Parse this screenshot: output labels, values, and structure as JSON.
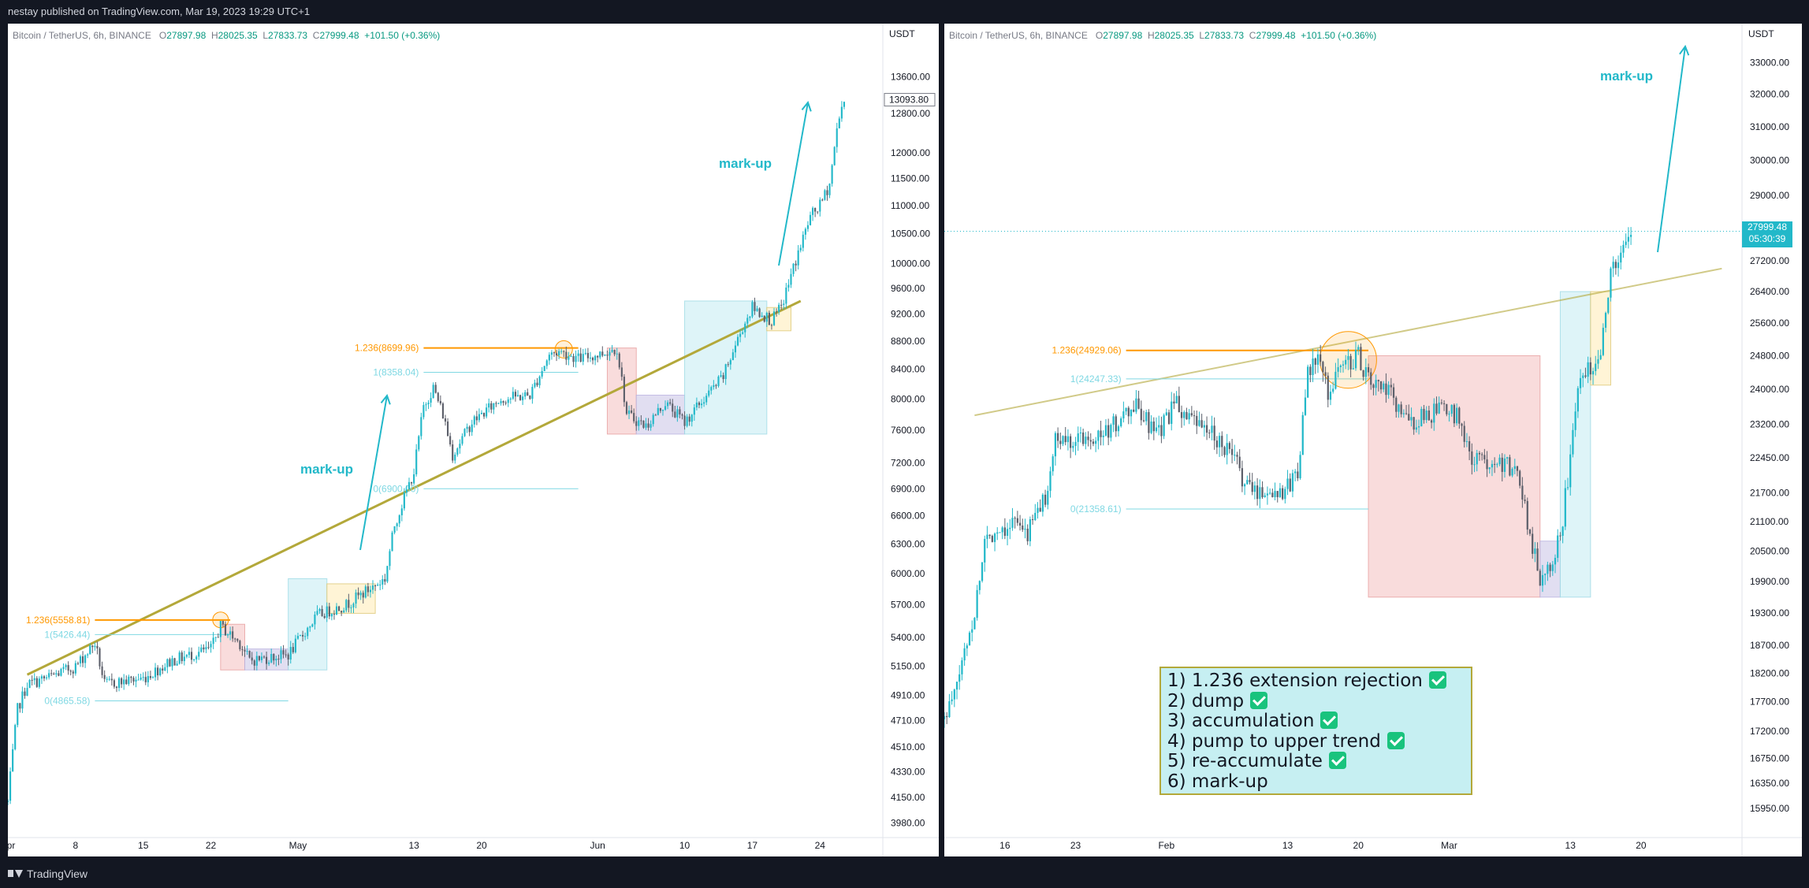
{
  "header": {
    "publisher_text": "nestay published on TradingView.com, Mar 19, 2023 19:29 UTC+1"
  },
  "footer": {
    "brand": "TradingView"
  },
  "colors": {
    "accent": "#22b8c9",
    "fib_orange": "#ff9800",
    "trend_gold": "#b3a83a",
    "up_candle": "#22b8c9",
    "down_candle": "#5d606b",
    "dump_box": "#f8d6d6",
    "accum_box": "#dcd9ef",
    "pump_box": "#d9f3f7"
  },
  "left_chart": {
    "symbol": "Bitcoin / TetherUS, 6h, BINANCE",
    "o_label": "O",
    "o_value": "27897.98",
    "h_label": "H",
    "h_value": "28025.35",
    "l_label": "L",
    "l_value": "27833.73",
    "c_label": "C",
    "c_value": "27999.48",
    "change": "+101.50 (+0.36%)",
    "currency": "USDT",
    "current_price_tag": "13093.80",
    "markup_labels": [
      "mark-up",
      "mark-up"
    ],
    "fib_labels": [
      "1.236(5558.81)",
      "1(5426.44)",
      "0(4865.58)",
      "1.236(8699.96)",
      "1(8358.04)",
      "0(6900.00)"
    ]
  },
  "right_chart": {
    "symbol": "Bitcoin / TetherUS, 6h, BINANCE",
    "o_label": "O",
    "o_value": "27897.98",
    "h_label": "H",
    "h_value": "28025.35",
    "l_label": "L",
    "l_value": "27833.73",
    "c_label": "C",
    "c_value": "27999.48",
    "change": "+101.50 (+0.36%)",
    "currency": "USDT",
    "current_price_tag": "27999.48",
    "countdown": "05:30:39",
    "markup_labels": [
      "mark-up"
    ],
    "fib_labels": [
      "1.236(24929.06)",
      "1(24247.33)",
      "0(21358.61)"
    ]
  },
  "checklist": {
    "items": [
      {
        "text": "1) 1.236 extension rejection",
        "checked": true
      },
      {
        "text": "2) dump",
        "checked": true
      },
      {
        "text": "3) accumulation",
        "checked": true
      },
      {
        "text": "4) pump to upper trend",
        "checked": true
      },
      {
        "text": "5) re-accumulate",
        "checked": true
      },
      {
        "text": "6) mark-up",
        "checked": false
      }
    ]
  },
  "chart_data": [
    {
      "type": "candlestick",
      "title": "Bitcoin / TetherUS, 6h, BINANCE",
      "y_axis": "log",
      "ylim": [
        3900,
        14000
      ],
      "y_ticks": [
        13600,
        12800,
        12000,
        11500,
        11000,
        10500,
        10000,
        9600,
        9200,
        8800,
        8400,
        8000,
        7600,
        7200,
        6900,
        6600,
        6300,
        6000,
        5700,
        5400,
        5150,
        4910,
        4710,
        4510,
        4330,
        4150,
        3980
      ],
      "x_tick_labels": [
        "Apr",
        "8",
        "15",
        "22",
        "May",
        "13",
        "20",
        "Jun",
        "10",
        "17",
        "24"
      ],
      "x_ticks_date": [
        "2019-04-01",
        "2019-04-08",
        "2019-04-15",
        "2019-04-22",
        "2019-05-01",
        "2019-05-13",
        "2019-05-20",
        "2019-06-01",
        "2019-06-10",
        "2019-06-17",
        "2019-06-24"
      ],
      "close_path": [
        [
          "2019-04-01",
          4120
        ],
        [
          "2019-04-02",
          4800
        ],
        [
          "2019-04-03",
          5000
        ],
        [
          "2019-04-05",
          5050
        ],
        [
          "2019-04-08",
          5150
        ],
        [
          "2019-04-10",
          5350
        ],
        [
          "2019-04-11",
          5000
        ],
        [
          "2019-04-15",
          5050
        ],
        [
          "2019-04-18",
          5200
        ],
        [
          "2019-04-20",
          5250
        ],
        [
          "2019-04-22",
          5300
        ],
        [
          "2019-04-23",
          5500
        ],
        [
          "2019-04-25",
          5350
        ],
        [
          "2019-04-26",
          5200
        ],
        [
          "2019-04-30",
          5250
        ],
        [
          "2019-05-03",
          5600
        ],
        [
          "2019-05-06",
          5700
        ],
        [
          "2019-05-10",
          5950
        ],
        [
          "2019-05-11",
          6500
        ],
        [
          "2019-05-13",
          7100
        ],
        [
          "2019-05-14",
          7900
        ],
        [
          "2019-05-15",
          8150
        ],
        [
          "2019-05-16",
          7800
        ],
        [
          "2019-05-17",
          7300
        ],
        [
          "2019-05-19",
          7700
        ],
        [
          "2019-05-22",
          8000
        ],
        [
          "2019-05-25",
          8050
        ],
        [
          "2019-05-27",
          8600
        ],
        [
          "2019-05-28",
          8650
        ],
        [
          "2019-05-30",
          8550
        ],
        [
          "2019-06-01",
          8600
        ],
        [
          "2019-06-03",
          8700
        ],
        [
          "2019-06-04",
          7800
        ],
        [
          "2019-06-06",
          7650
        ],
        [
          "2019-06-08",
          7950
        ],
        [
          "2019-06-10",
          7700
        ],
        [
          "2019-06-12",
          8000
        ],
        [
          "2019-06-14",
          8300
        ],
        [
          "2019-06-16",
          9000
        ],
        [
          "2019-06-17",
          9300
        ],
        [
          "2019-06-19",
          9100
        ],
        [
          "2019-06-20",
          9300
        ],
        [
          "2019-06-21",
          9800
        ],
        [
          "2019-06-22",
          10300
        ],
        [
          "2019-06-23",
          10800
        ],
        [
          "2019-06-24",
          11000
        ],
        [
          "2019-06-25",
          11400
        ],
        [
          "2019-06-26",
          12800
        ],
        [
          "2019-06-26T12:00",
          13093.8
        ]
      ],
      "fib_levels": [
        {
          "label": "1.236(5558.81)",
          "price": 5558.81
        },
        {
          "label": "1(5426.44)",
          "price": 5426.44
        },
        {
          "label": "0(4865.58)",
          "price": 4865.58
        },
        {
          "label": "1.236(8699.96)",
          "price": 8699.96
        },
        {
          "label": "1(8358.04)",
          "price": 8358.04
        },
        {
          "label": "0(6900.00)",
          "price": 6900
        }
      ],
      "annotations": [
        "mark-up",
        "mark-up"
      ]
    },
    {
      "type": "candlestick",
      "title": "Bitcoin / TetherUS, 6h, BINANCE",
      "y_axis": "log",
      "ylim": [
        15600,
        33500
      ],
      "y_ticks": [
        33000,
        32000,
        31000,
        30000,
        29000,
        28000,
        27200,
        26400,
        25600,
        24800,
        24000,
        23200,
        22450,
        21700,
        21100,
        20500,
        19900,
        19300,
        18700,
        18200,
        17700,
        17200,
        16750,
        16350,
        15950
      ],
      "x_tick_labels": [
        "16",
        "23",
        "Feb",
        "13",
        "20",
        "Mar",
        "13",
        "20"
      ],
      "x_ticks_date": [
        "2023-01-16",
        "2023-01-23",
        "2023-02-01",
        "2023-02-13",
        "2023-02-20",
        "2023-03-01",
        "2023-03-13",
        "2023-03-20"
      ],
      "close_path": [
        [
          "2023-01-10",
          17400
        ],
        [
          "2023-01-11",
          17800
        ],
        [
          "2023-01-12",
          18600
        ],
        [
          "2023-01-13",
          19300
        ],
        [
          "2023-01-14",
          20700
        ],
        [
          "2023-01-15",
          20900
        ],
        [
          "2023-01-17",
          21100
        ],
        [
          "2023-01-18",
          20800
        ],
        [
          "2023-01-20",
          21600
        ],
        [
          "2023-01-21",
          22800
        ],
        [
          "2023-01-23",
          22900
        ],
        [
          "2023-01-26",
          23000
        ],
        [
          "2023-01-29",
          23600
        ],
        [
          "2023-01-31",
          22900
        ],
        [
          "2023-02-02",
          23700
        ],
        [
          "2023-02-03",
          23300
        ],
        [
          "2023-02-06",
          22900
        ],
        [
          "2023-02-08",
          22300
        ],
        [
          "2023-02-09",
          21800
        ],
        [
          "2023-02-11",
          21700
        ],
        [
          "2023-02-13",
          21800
        ],
        [
          "2023-02-14",
          22200
        ],
        [
          "2023-02-15",
          24300
        ],
        [
          "2023-02-16",
          24800
        ],
        [
          "2023-02-17",
          23900
        ],
        [
          "2023-02-18",
          24500
        ],
        [
          "2023-02-20",
          24800
        ],
        [
          "2023-02-21",
          24200
        ],
        [
          "2023-02-23",
          23900
        ],
        [
          "2023-02-25",
          23200
        ],
        [
          "2023-02-28",
          23500
        ],
        [
          "2023-03-02",
          23400
        ],
        [
          "2023-03-03",
          22400
        ],
        [
          "2023-03-06",
          22400
        ],
        [
          "2023-03-08",
          22000
        ],
        [
          "2023-03-09",
          20800
        ],
        [
          "2023-03-10",
          20000
        ],
        [
          "2023-03-11",
          20300
        ],
        [
          "2023-03-12",
          20800
        ],
        [
          "2023-03-13",
          22400
        ],
        [
          "2023-03-14",
          24500
        ],
        [
          "2023-03-15",
          24500
        ],
        [
          "2023-03-16",
          25000
        ],
        [
          "2023-03-17",
          26900
        ],
        [
          "2023-03-18",
          27300
        ],
        [
          "2023-03-19",
          27999.48
        ]
      ],
      "fib_levels": [
        {
          "label": "1.236(24929.06)",
          "price": 24929.06
        },
        {
          "label": "1(24247.33)",
          "price": 24247.33
        },
        {
          "label": "0(21358.61)",
          "price": 21358.61
        }
      ],
      "annotations": [
        "mark-up"
      ]
    }
  ]
}
